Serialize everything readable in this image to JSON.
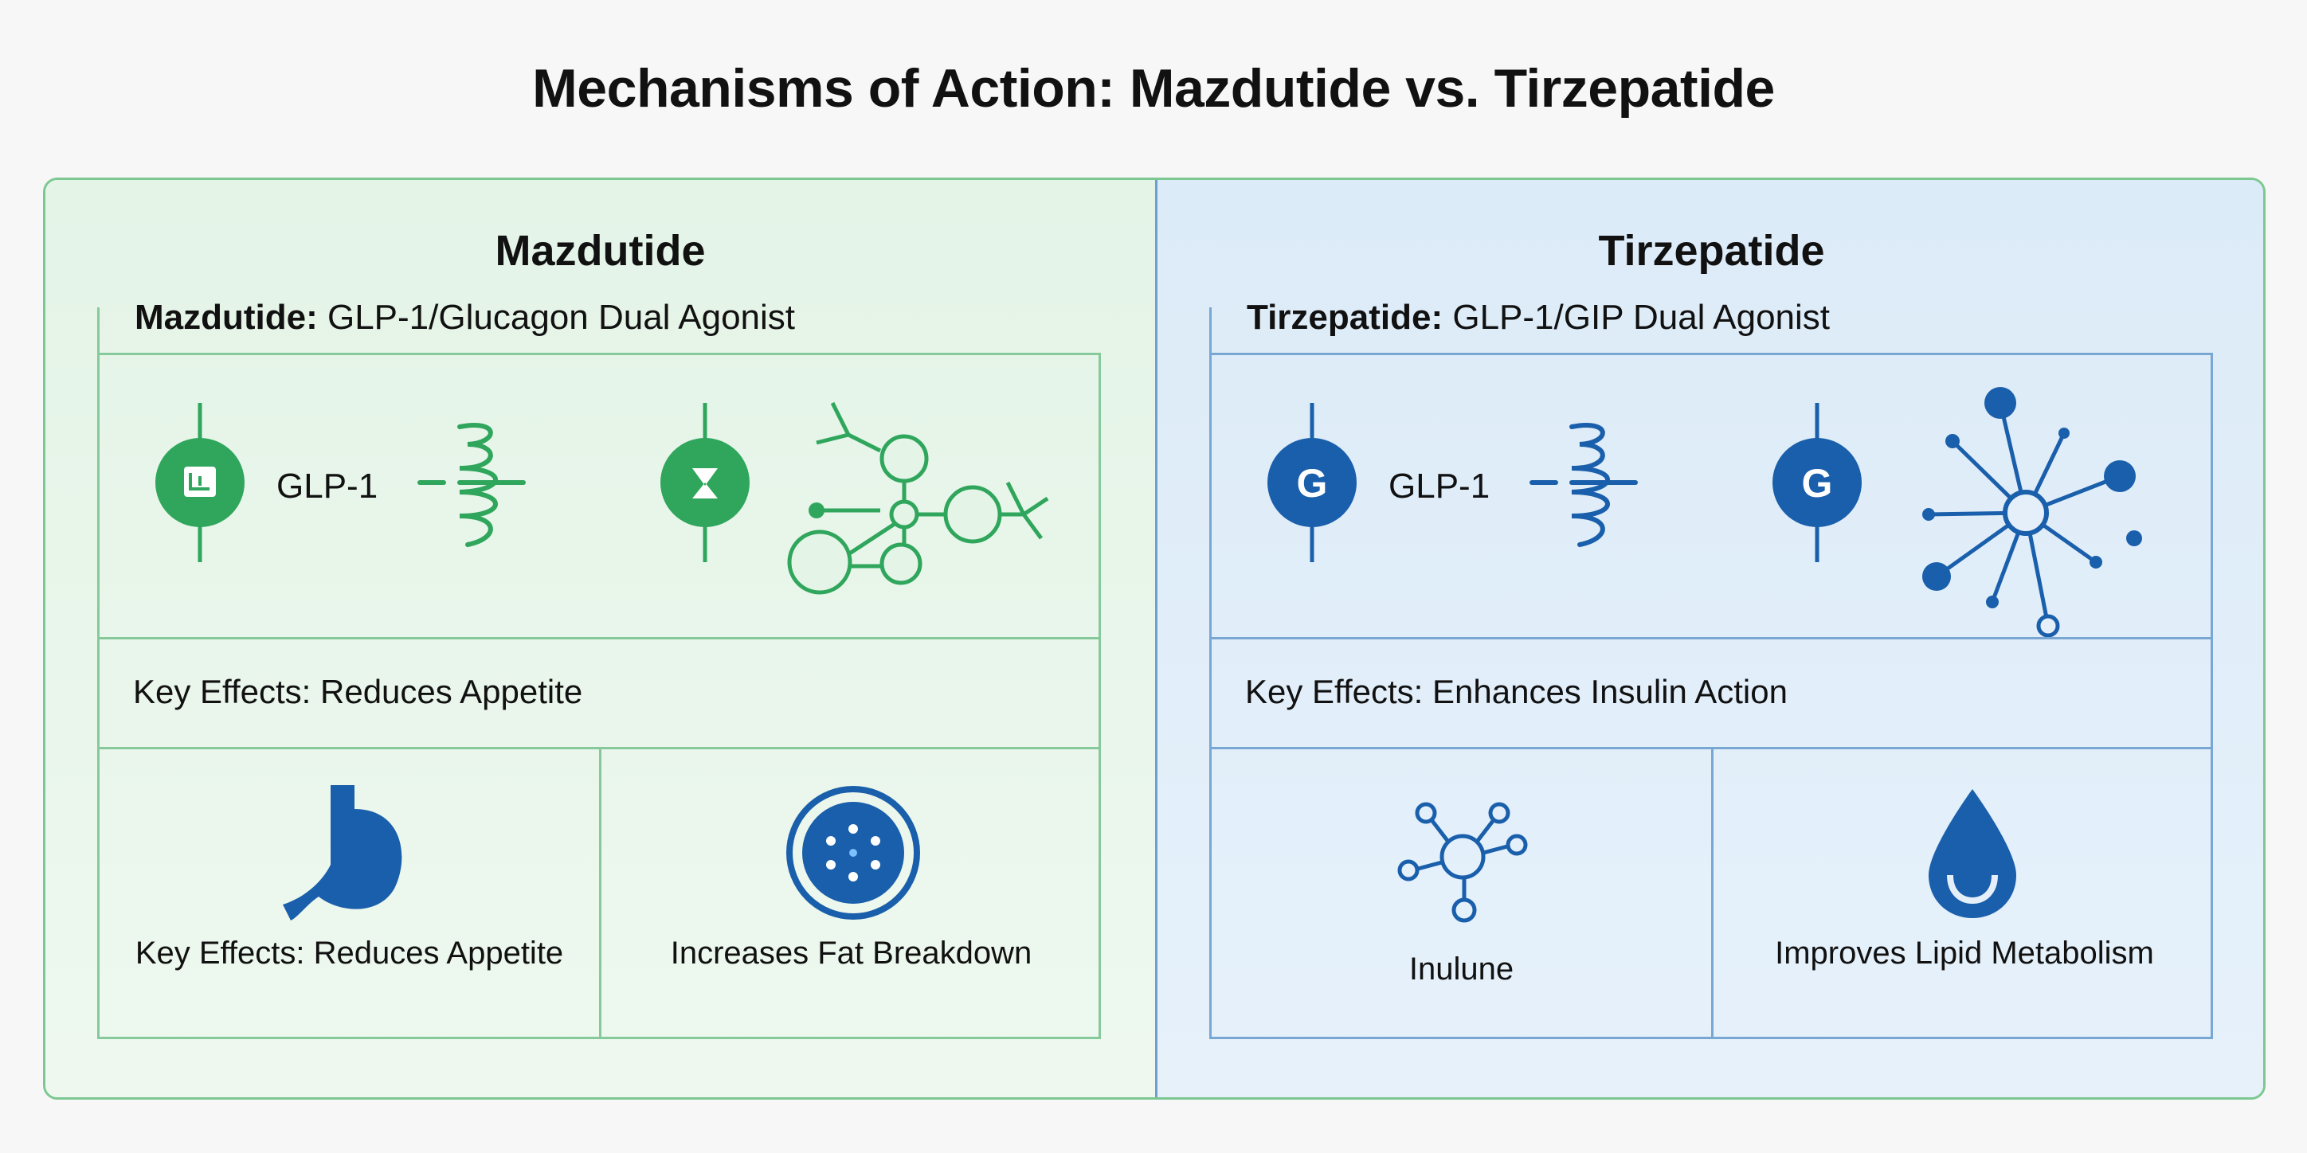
{
  "title": "Mechanisms of Action: Mazdutide vs. Tirzepatide",
  "colors": {
    "green_accent": "#2fa65c",
    "blue_accent": "#1a5fab",
    "green_border": "#86c99a",
    "blue_border": "#79a7d4"
  },
  "mazdutide": {
    "heading": "Mazdutide",
    "subtitle_name": "Mazdutide:",
    "subtitle_desc": " GLP-1/Glucagon Dual Agonist",
    "receptor_label": "GLP-1",
    "key_effects": "Key Effects: Reduces Appetite",
    "effects": [
      {
        "icon": "stomach-icon",
        "label": "Key Effects: Reduces Appetite"
      },
      {
        "icon": "fat-cell-icon",
        "label": "Increases Fat Breakdown"
      }
    ]
  },
  "tirzepatide": {
    "heading": "Tirzepatide",
    "subtitle_name": "Tirzepatide:",
    "subtitle_desc": " GLP-1/GIP Dual Agonist",
    "receptor_label": "GLP-1",
    "receptor_badge": "G",
    "key_effects": "Key Effects: Enhances Insulin Action",
    "effects": [
      {
        "icon": "insulin-network-icon",
        "label": "Inulune"
      },
      {
        "icon": "lipid-drop-icon",
        "label": "Improves Lipid Metabolism"
      }
    ]
  }
}
